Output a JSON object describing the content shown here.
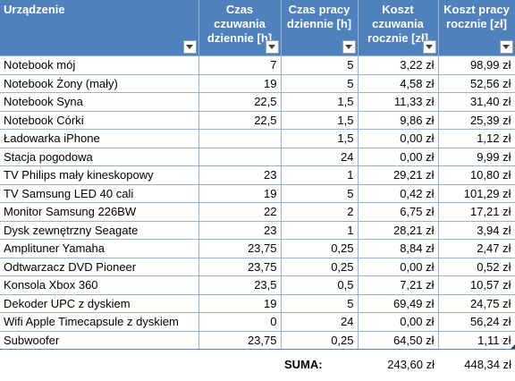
{
  "headers": [
    "Urządzenie",
    "Czas czuwania\ndziennie [h]",
    "Czas pracy\ndziennie [h]",
    "Koszt\nczuwania\nrocznie [zł]",
    "Koszt pracy\nrocznie [zł]"
  ],
  "rows": [
    [
      "Notebook mój",
      "7",
      "5",
      "3,22 zł",
      "98,99 zł"
    ],
    [
      "Notebook Żony (mały)",
      "19",
      "5",
      "4,58 zł",
      "52,56 zł"
    ],
    [
      "Notebook Syna",
      "22,5",
      "1,5",
      "11,33 zł",
      "31,40 zł"
    ],
    [
      "Notebook Córki",
      "22,5",
      "1,5",
      "9,86 zł",
      "25,39 zł"
    ],
    [
      "Ładowarka iPhone",
      "",
      "1,5",
      "0,00 zł",
      "1,12 zł"
    ],
    [
      "Stacja pogodowa",
      "",
      "24",
      "0,00 zł",
      "9,99 zł"
    ],
    [
      "TV Philips mały kineskopowy",
      "23",
      "1",
      "29,21 zł",
      "10,80 zł"
    ],
    [
      "TV Samsung LED 40 cali",
      "19",
      "5",
      "0,42 zł",
      "101,29 zł"
    ],
    [
      "Monitor Samsung 226BW",
      "22",
      "2",
      "6,75 zł",
      "17,21 zł"
    ],
    [
      "Dysk zewnętrzny Seagate",
      "23",
      "1",
      "28,21 zł",
      "3,94 zł"
    ],
    [
      "Amplituner Yamaha",
      "23,75",
      "0,25",
      "8,84 zł",
      "2,47 zł"
    ],
    [
      "Odtwarzacz DVD Pioneer",
      "23,75",
      "0,25",
      "0,00 zł",
      "0,52 zł"
    ],
    [
      "Konsola Xbox 360",
      "23,5",
      "0,5",
      "7,21 zł",
      "10,57 zł"
    ],
    [
      "Dekoder UPC z dyskiem",
      "19",
      "5",
      "69,49 zł",
      "24,75 zł"
    ],
    [
      "Wifi Apple Timecapsule z dyskiem",
      "0",
      "24",
      "0,00 zł",
      "56,24 zł"
    ],
    [
      "Subwoofer",
      "23,75",
      "0,25",
      "64,50 zł",
      "1,11 zł"
    ]
  ],
  "summary": {
    "label": "SUMA:",
    "standby_total": "243,60 zł",
    "work_total": "448,34 zł"
  }
}
